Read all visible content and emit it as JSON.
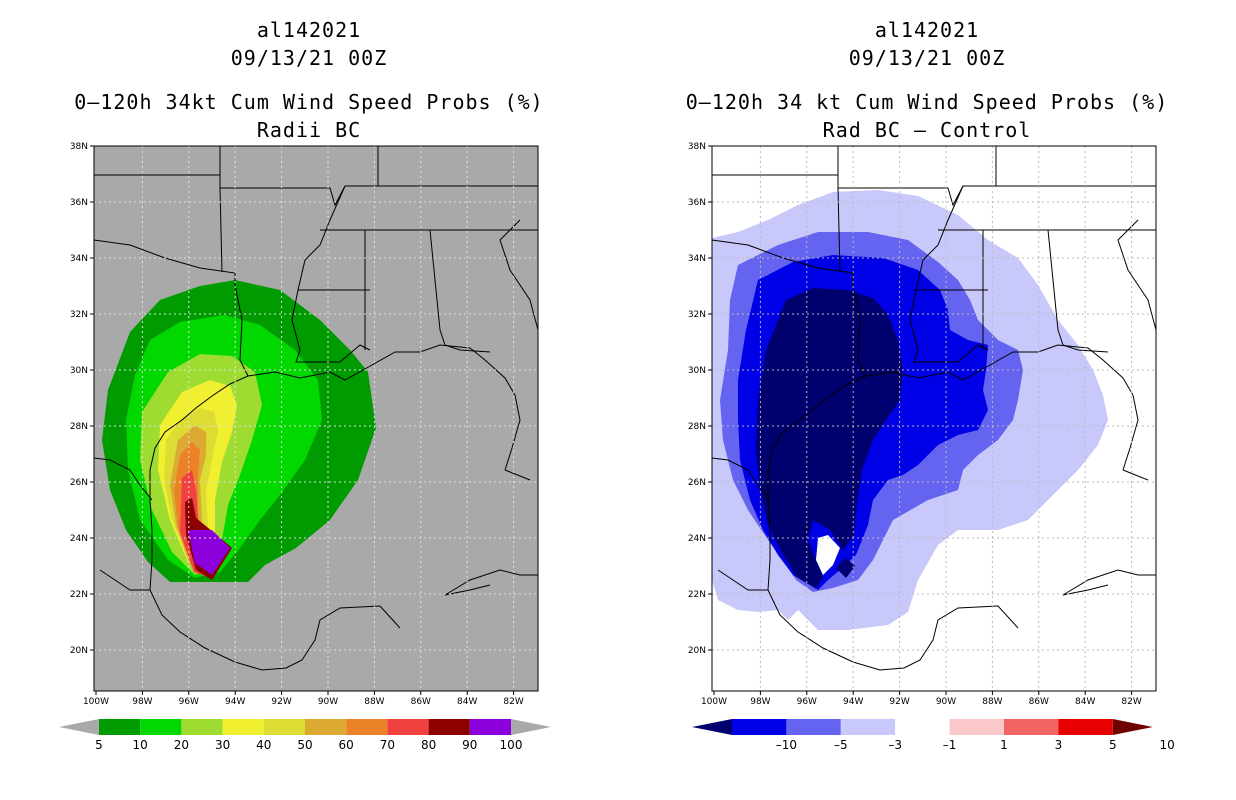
{
  "left_panel": {
    "storm_id": "al142021",
    "datetime": "09/13/21 00Z",
    "title": "0–120h 34kt Cum Wind Speed Probs (%)",
    "subtitle": "Radii BC",
    "background_color": "#a9a9a9",
    "colorbar": {
      "labels": [
        "5",
        "10",
        "20",
        "30",
        "40",
        "50",
        "60",
        "70",
        "80",
        "90",
        "100"
      ],
      "colors": [
        "#009b00",
        "#00d800",
        "#9edc32",
        "#f0f030",
        "#dcdc32",
        "#dcaa32",
        "#ec8228",
        "#f04040",
        "#8c0000",
        "#8c00dc"
      ]
    }
  },
  "right_panel": {
    "storm_id": "al142021",
    "datetime": "09/13/21 00Z",
    "title": "0–120h 34 kt Cum Wind Speed Probs (%)",
    "subtitle": "Rad BC – Control",
    "background_color": "#ffffff",
    "colorbar": {
      "labels": [
        "–10",
        "–5",
        "–3",
        "–1",
        "1",
        "3",
        "5",
        "10"
      ],
      "colors": [
        "#00006e",
        "#0000e6",
        "#6464f0",
        "#c8c8fa",
        "#ffffff",
        "#fac8c8",
        "#f06464",
        "#e60000",
        "#6e0000"
      ]
    }
  },
  "map": {
    "lat_labels": [
      "38N",
      "36N",
      "34N",
      "32N",
      "30N",
      "28N",
      "26N",
      "24N",
      "22N",
      "20N"
    ],
    "lon_labels": [
      "100W",
      "98W",
      "96W",
      "94W",
      "92W",
      "90W",
      "88W",
      "86W",
      "84W",
      "82W"
    ]
  }
}
